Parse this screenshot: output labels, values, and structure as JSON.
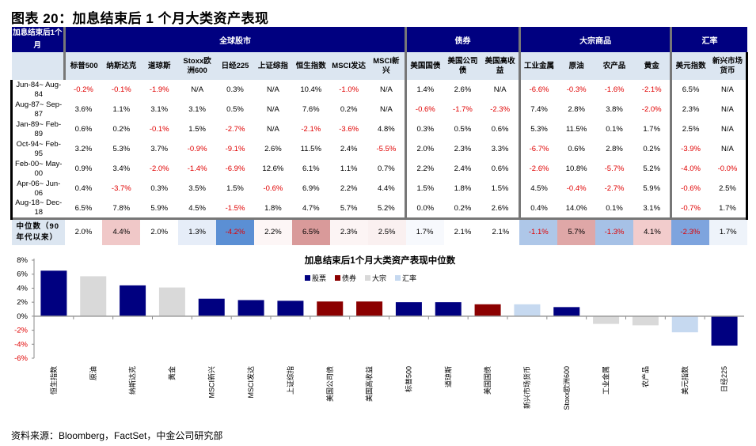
{
  "figure_title": "图表 20：加息结束后 1 个月大类资产表现",
  "table": {
    "corner_label": "加息结束后1个月",
    "groups": [
      {
        "label": "全球股市",
        "span": 9
      },
      {
        "label": "债券",
        "span": 3
      },
      {
        "label": "大宗商品",
        "span": 4
      },
      {
        "label": "汇率",
        "span": 2
      }
    ],
    "columns": [
      "标普500",
      "纳斯达克",
      "道琼斯",
      "Stoxx欧洲600",
      "日经225",
      "上证综指",
      "恒生指数",
      "MSCI发达",
      "MSCI新兴",
      "美国国债",
      "美国公司债",
      "美国高收益",
      "工业金属",
      "原油",
      "农产品",
      "黄金",
      "美元指数",
      "新兴市场货币"
    ],
    "rows": [
      {
        "period": "Jun-84~ Aug-84",
        "values": [
          "-0.2%",
          "-0.1%",
          "-1.9%",
          "N/A",
          "0.3%",
          "N/A",
          "10.4%",
          "-1.0%",
          "N/A",
          "1.4%",
          "2.6%",
          "N/A",
          "-6.6%",
          "-0.3%",
          "-1.6%",
          "-2.1%",
          "6.5%",
          "N/A"
        ]
      },
      {
        "period": "Aug-87~ Sep-87",
        "values": [
          "3.6%",
          "1.1%",
          "3.1%",
          "3.1%",
          "0.5%",
          "N/A",
          "7.6%",
          "0.2%",
          "N/A",
          "-0.6%",
          "-1.7%",
          "-2.3%",
          "7.4%",
          "2.8%",
          "3.8%",
          "-2.0%",
          "2.3%",
          "N/A"
        ]
      },
      {
        "period": "Jan-89~ Feb-89",
        "values": [
          "0.6%",
          "0.2%",
          "-0.1%",
          "1.5%",
          "-2.7%",
          "N/A",
          "-2.1%",
          "-3.6%",
          "4.8%",
          "0.3%",
          "0.5%",
          "0.6%",
          "5.3%",
          "11.5%",
          "0.1%",
          "1.7%",
          "2.5%",
          "N/A"
        ]
      },
      {
        "period": "Oct-94~ Feb-95",
        "values": [
          "3.2%",
          "5.3%",
          "3.7%",
          "-0.9%",
          "-9.1%",
          "2.6%",
          "11.5%",
          "2.4%",
          "-5.5%",
          "2.0%",
          "2.3%",
          "3.3%",
          "-6.7%",
          "0.6%",
          "2.8%",
          "0.2%",
          "-3.9%",
          "N/A"
        ]
      },
      {
        "period": "Feb-00~ May-00",
        "values": [
          "0.9%",
          "3.4%",
          "-2.0%",
          "-1.4%",
          "-6.9%",
          "12.6%",
          "6.1%",
          "1.1%",
          "0.7%",
          "2.2%",
          "2.4%",
          "0.6%",
          "-2.6%",
          "10.8%",
          "-5.7%",
          "5.2%",
          "-4.0%",
          "-0.0%"
        ]
      },
      {
        "period": "Apr-06~ Jun-06",
        "values": [
          "0.4%",
          "-3.7%",
          "0.3%",
          "3.5%",
          "1.5%",
          "-0.6%",
          "6.9%",
          "2.2%",
          "4.4%",
          "1.5%",
          "1.8%",
          "1.5%",
          "4.5%",
          "-0.4%",
          "-2.7%",
          "5.9%",
          "-0.6%",
          "2.5%"
        ]
      },
      {
        "period": "Aug-18~ Dec-18",
        "values": [
          "6.5%",
          "7.8%",
          "5.9%",
          "4.5%",
          "-1.5%",
          "1.8%",
          "4.7%",
          "5.7%",
          "5.2%",
          "0.0%",
          "0.2%",
          "2.6%",
          "0.4%",
          "14.0%",
          "0.1%",
          "3.1%",
          "-0.7%",
          "1.7%"
        ]
      }
    ],
    "median_label": "中位数（90年代以来）",
    "median_values": [
      "2.0%",
      "4.4%",
      "2.0%",
      "1.3%",
      "-4.2%",
      "2.2%",
      "6.5%",
      "2.3%",
      "2.5%",
      "1.7%",
      "2.1%",
      "2.1%",
      "-1.1%",
      "5.7%",
      "-1.3%",
      "4.1%",
      "-2.3%",
      "1.7%"
    ],
    "median_colors": [
      "#ffffff",
      "#f0c8c8",
      "#ffffff",
      "#e6edf8",
      "#5b8fd4",
      "#fdf6f6",
      "#d99a9a",
      "#fcf4f4",
      "#faf0f0",
      "#f7f9fd",
      "#ffffff",
      "#ffffff",
      "#aec7e8",
      "#dfa7a7",
      "#a6c1e6",
      "#f2cccc",
      "#7ea4de",
      "#eef3fa"
    ]
  },
  "chart_data": {
    "type": "bar",
    "title": "加息结束后1个月大类资产表现中位数",
    "categories": [
      "恒生指数",
      "原油",
      "纳斯达克",
      "黄金",
      "MSCI新兴",
      "MSCI发达",
      "上证综指",
      "美国公司债",
      "美国高收益",
      "标普500",
      "道琼斯",
      "美国国债",
      "新兴市场货币",
      "Stoxx欧洲600",
      "工业金属",
      "农产品",
      "美元指数",
      "日经225"
    ],
    "values": [
      6.5,
      5.7,
      4.4,
      4.1,
      2.5,
      2.3,
      2.2,
      2.1,
      2.1,
      2.0,
      2.0,
      1.7,
      1.7,
      1.3,
      -1.1,
      -1.3,
      -2.3,
      -4.2
    ],
    "series_of_category": [
      "股票",
      "大宗",
      "股票",
      "大宗",
      "股票",
      "股票",
      "股票",
      "债券",
      "债券",
      "股票",
      "股票",
      "债券",
      "汇率",
      "股票",
      "大宗",
      "大宗",
      "汇率",
      "股票"
    ],
    "legend": [
      {
        "name": "股票",
        "color": "#000080"
      },
      {
        "name": "债券",
        "color": "#8b0000"
      },
      {
        "name": "大宗",
        "color": "#d9d9d9"
      },
      {
        "name": "汇率",
        "color": "#c6d9f0"
      }
    ],
    "legend_position": "top-center",
    "ylim": [
      -6,
      8
    ],
    "yticks": [
      "-6%",
      "-4%",
      "-2%",
      "0%",
      "2%",
      "4%",
      "6%",
      "8%"
    ],
    "ytick_values": [
      -6,
      -4,
      -2,
      0,
      2,
      4,
      6,
      8
    ],
    "xlabel": "",
    "ylabel": ""
  },
  "source": "资料来源：Bloomberg，FactSet，中金公司研究部"
}
